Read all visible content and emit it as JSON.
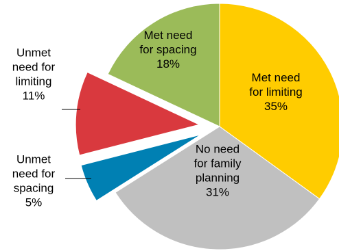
{
  "chart_data": {
    "type": "pie",
    "title": "",
    "slices": [
      {
        "label_lines": [
          "Met need",
          "for limiting",
          "35%"
        ],
        "label": "Met need for limiting",
        "value": 35,
        "color": "#ffcc00",
        "exploded": false,
        "label_position": "inside"
      },
      {
        "label_lines": [
          "No need",
          "for family",
          "planning",
          "31%"
        ],
        "label": "No need for family planning",
        "value": 31,
        "color": "#c0c0c0",
        "exploded": false,
        "label_position": "inside"
      },
      {
        "label_lines": [
          "Unmet",
          "need for",
          "spacing",
          "5%"
        ],
        "label": "Unmet need for spacing",
        "value": 5,
        "color": "#0080b3",
        "exploded": true,
        "label_position": "outside"
      },
      {
        "label_lines": [
          "Unmet",
          "need for",
          "limiting",
          "11%"
        ],
        "label": "Unmet need for limiting",
        "value": 11,
        "color": "#d9393e",
        "exploded": true,
        "label_position": "outside"
      },
      {
        "label_lines": [
          "Met need",
          "for spacing",
          "18%"
        ],
        "label": "Met need for spacing",
        "value": 18,
        "color": "#9bbb59",
        "exploded": false,
        "label_position": "inside"
      }
    ],
    "start_angle_deg": 0,
    "direction": "clockwise",
    "legend": "none",
    "grid": false
  }
}
